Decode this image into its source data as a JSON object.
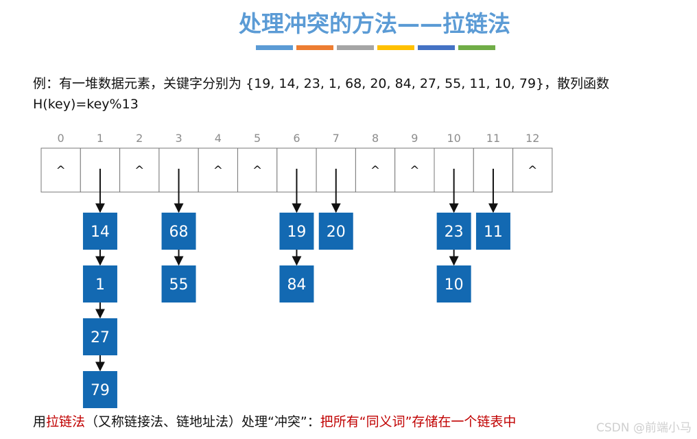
{
  "title": "处理冲突的方法——拉链法",
  "title_color": "#5b9bd5",
  "color_bar": [
    "#5b9bd5",
    "#ed7d31",
    "#a5a5a5",
    "#ffc000",
    "#4472c4",
    "#70ad47"
  ],
  "example": {
    "line1": "例：有一堆数据元素，关键字分别为 {19, 14, 23, 1, 68, 20, 84, 27, 55, 11, 10, 79}，散列函数",
    "line2": "H(key)=key%13"
  },
  "table": {
    "indices": [
      "0",
      "1",
      "2",
      "3",
      "4",
      "5",
      "6",
      "7",
      "8",
      "9",
      "10",
      "11",
      "12"
    ],
    "empty_marker": "^",
    "empty_slots": [
      0,
      2,
      4,
      5,
      8,
      9,
      12
    ]
  },
  "chains": [
    {
      "slot": 1,
      "keys": [
        "14",
        "1",
        "27",
        "79"
      ]
    },
    {
      "slot": 3,
      "keys": [
        "68",
        "55"
      ]
    },
    {
      "slot": 6,
      "keys": [
        "19",
        "84"
      ]
    },
    {
      "slot": 7,
      "keys": [
        "20"
      ]
    },
    {
      "slot": 10,
      "keys": [
        "23",
        "10"
      ]
    },
    {
      "slot": 11,
      "keys": [
        "11"
      ]
    }
  ],
  "node_color": "#1369b2",
  "footer": {
    "part1": "用",
    "part2": "拉链法",
    "part3": "（又称链接法、链地址法）处理“冲突”：",
    "part4": "把所有“同义词”存储在一个链表中"
  },
  "watermark": "CSDN @前端小马"
}
